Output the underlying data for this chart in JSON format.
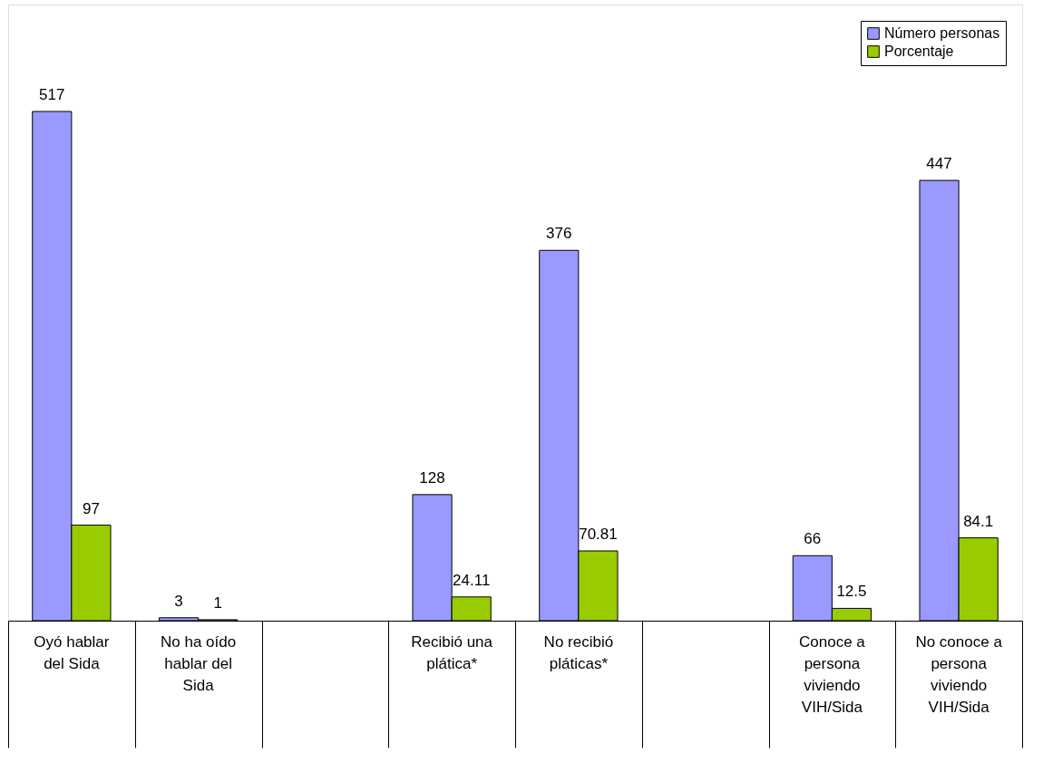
{
  "chart_data": {
    "type": "bar",
    "categories": [
      "Oyó hablar del Sida",
      "No ha oído hablar del Sida",
      null,
      "Recibió una plática*",
      "No recibió pláticas*",
      null,
      "Conoce a persona viviendo VIH/Sida",
      "No conoce a persona viviendo VIH/Sida"
    ],
    "series": [
      {
        "name": "Número personas",
        "color": "#9999ff",
        "values": [
          517,
          3,
          null,
          128,
          376,
          null,
          66,
          447
        ]
      },
      {
        "name": "Porcentaje",
        "color": "#99cc00",
        "values": [
          97,
          1,
          null,
          24.11,
          70.81,
          null,
          12.5,
          84.1
        ]
      }
    ],
    "data_labels": true,
    "legend": "top right",
    "grid": false
  }
}
